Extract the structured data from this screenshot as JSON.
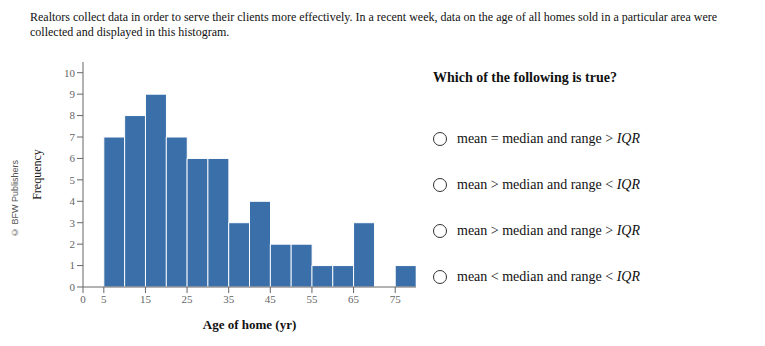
{
  "chart_data": {
    "type": "histogram",
    "title": "Realtors collect data in order to serve their clients more effectively. In a recent week, data on the age of all homes sold in a particular area were collected and displayed in this histogram.",
    "xlabel": "Age of home (yr)",
    "ylabel": "Frequency",
    "bins": [
      5,
      10,
      15,
      20,
      25,
      30,
      35,
      40,
      45,
      50,
      55,
      60,
      65,
      70,
      75,
      80
    ],
    "values": [
      7,
      8,
      9,
      7,
      6,
      6,
      3,
      4,
      2,
      2,
      1,
      1,
      3,
      0,
      1
    ],
    "color": "#3a6faa",
    "xlim": [
      0,
      80
    ],
    "ylim": [
      0,
      10.5
    ],
    "xticks": [
      0,
      5,
      15,
      25,
      35,
      45,
      55,
      65,
      75
    ],
    "yticks": [
      0,
      1,
      2,
      3,
      4,
      5,
      6,
      7,
      8,
      9,
      10
    ],
    "grid": false,
    "annotations": [
      "© BFW Publishers",
      "Which of the following is true?",
      "mean = median and range > IQR",
      "mean > median and range < IQR",
      "mean > median and range > IQR",
      "mean < median and range < IQR"
    ]
  }
}
